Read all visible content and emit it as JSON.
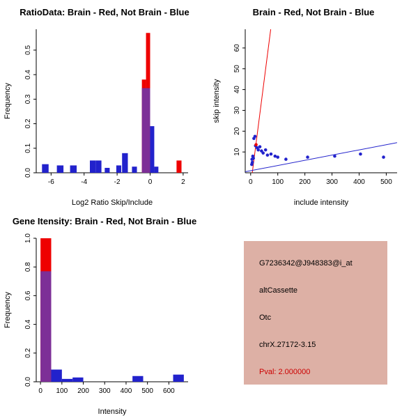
{
  "palette": {
    "red": "#ee0000",
    "blue": "#2222cc",
    "purple": "#7d2f97",
    "black": "#000000"
  },
  "chart_data": [
    {
      "id": "ratio_hist",
      "type": "bar",
      "title": "RatioData: Brain - Red, Not Brain - Blue",
      "xlabel": "Log2 Ratio Skip/Include",
      "ylabel": "Frequency",
      "xlim": [
        -6.9,
        2.3
      ],
      "ylim": [
        0,
        0.585
      ],
      "legend": "overlaid histograms: Brain in red, Not Brain in blue, overlap purple",
      "xticks": [
        {
          "v": -6,
          "label": "-6"
        },
        {
          "v": -4,
          "label": "-4"
        },
        {
          "v": -2,
          "label": "-2"
        },
        {
          "v": 0,
          "label": "0"
        },
        {
          "v": 2,
          "label": "2"
        }
      ],
      "yticks": [
        {
          "v": 0,
          "label": "0.0"
        },
        {
          "v": 0.1,
          "label": "0.1"
        },
        {
          "v": 0.2,
          "label": "0.2"
        },
        {
          "v": 0.3,
          "label": "0.3"
        },
        {
          "v": 0.4,
          "label": "0.4"
        },
        {
          "v": 0.5,
          "label": "0.5"
        }
      ],
      "bars": [
        {
          "x0": -6.55,
          "x1": -6.15,
          "h": 0.035,
          "color": "blue"
        },
        {
          "x0": -5.65,
          "x1": -5.25,
          "h": 0.03,
          "color": "blue"
        },
        {
          "x0": -4.85,
          "x1": -4.45,
          "h": 0.03,
          "color": "blue"
        },
        {
          "x0": -3.65,
          "x1": -3.3,
          "h": 0.05,
          "color": "blue"
        },
        {
          "x0": -3.3,
          "x1": -2.95,
          "h": 0.05,
          "color": "blue"
        },
        {
          "x0": -2.75,
          "x1": -2.45,
          "h": 0.02,
          "color": "blue"
        },
        {
          "x0": -2.05,
          "x1": -1.75,
          "h": 0.03,
          "color": "blue"
        },
        {
          "x0": -1.7,
          "x1": -1.35,
          "h": 0.08,
          "color": "blue"
        },
        {
          "x0": -1.1,
          "x1": -0.8,
          "h": 0.025,
          "color": "blue"
        },
        {
          "x0": -0.5,
          "x1": -0.25,
          "h": 0.38,
          "color": "red"
        },
        {
          "x0": -0.25,
          "x1": 0.0,
          "h": 0.57,
          "color": "red"
        },
        {
          "x0": -0.5,
          "x1": 0.0,
          "h": 0.345,
          "color": "purple"
        },
        {
          "x0": 0.0,
          "x1": 0.25,
          "h": 0.19,
          "color": "blue"
        },
        {
          "x0": 0.25,
          "x1": 0.5,
          "h": 0.025,
          "color": "blue"
        },
        {
          "x0": 1.6,
          "x1": 1.9,
          "h": 0.05,
          "color": "red"
        }
      ]
    },
    {
      "id": "scatter",
      "type": "scatter",
      "title": "Brain - Red, Not Brain - Blue",
      "xlabel": "include intensity",
      "ylabel": "skip intensity",
      "xlim": [
        -20,
        540
      ],
      "ylim": [
        0,
        69
      ],
      "xticks": [
        {
          "v": 0,
          "label": "0"
        },
        {
          "v": 100,
          "label": "100"
        },
        {
          "v": 200,
          "label": "200"
        },
        {
          "v": 300,
          "label": "300"
        },
        {
          "v": 400,
          "label": "400"
        },
        {
          "v": 500,
          "label": "500"
        }
      ],
      "yticks": [
        {
          "v": 10,
          "label": "10"
        },
        {
          "v": 20,
          "label": "20"
        },
        {
          "v": 30,
          "label": "30"
        },
        {
          "v": 40,
          "label": "40"
        },
        {
          "v": 50,
          "label": "50"
        },
        {
          "v": 60,
          "label": "60"
        }
      ],
      "lines": [
        {
          "x0": 6,
          "y0": 0,
          "x1": 74,
          "y1": 69,
          "color": "red"
        },
        {
          "x0": -20,
          "y0": 0.5,
          "x1": 540,
          "y1": 14.5,
          "color": "blue"
        }
      ],
      "points": [
        {
          "x": 4,
          "y": 4,
          "c": "blue"
        },
        {
          "x": 5,
          "y": 6.5,
          "c": "blue"
        },
        {
          "x": 6,
          "y": 5,
          "c": "blue"
        },
        {
          "x": 8,
          "y": 8,
          "c": "blue"
        },
        {
          "x": 10,
          "y": 7,
          "c": "blue"
        },
        {
          "x": 12,
          "y": 16.5,
          "c": "blue"
        },
        {
          "x": 16,
          "y": 17.5,
          "c": "blue"
        },
        {
          "x": 18,
          "y": 13,
          "c": "blue"
        },
        {
          "x": 20,
          "y": 13.5,
          "c": "red"
        },
        {
          "x": 24,
          "y": 12,
          "c": "blue"
        },
        {
          "x": 28,
          "y": 11,
          "c": "blue"
        },
        {
          "x": 34,
          "y": 12.5,
          "c": "blue"
        },
        {
          "x": 40,
          "y": 10.5,
          "c": "blue"
        },
        {
          "x": 46,
          "y": 9.5,
          "c": "blue"
        },
        {
          "x": 55,
          "y": 11,
          "c": "blue"
        },
        {
          "x": 62,
          "y": 8.5,
          "c": "blue"
        },
        {
          "x": 75,
          "y": 9,
          "c": "blue"
        },
        {
          "x": 90,
          "y": 8,
          "c": "blue"
        },
        {
          "x": 100,
          "y": 7.5,
          "c": "blue"
        },
        {
          "x": 130,
          "y": 6.5,
          "c": "blue"
        },
        {
          "x": 210,
          "y": 7.5,
          "c": "blue"
        },
        {
          "x": 310,
          "y": 8,
          "c": "blue"
        },
        {
          "x": 405,
          "y": 9,
          "c": "blue"
        },
        {
          "x": 490,
          "y": 7.5,
          "c": "blue"
        }
      ]
    },
    {
      "id": "gene_hist",
      "type": "bar",
      "title": "Gene Itensity: Brain - Red, Not Brain - Blue",
      "xlabel": "Intensity",
      "ylabel": "Frequency",
      "xlim": [
        -20,
        690
      ],
      "ylim": [
        0,
        1.0
      ],
      "xticks": [
        {
          "v": 0,
          "label": "0"
        },
        {
          "v": 100,
          "label": "100"
        },
        {
          "v": 200,
          "label": "200"
        },
        {
          "v": 300,
          "label": "300"
        },
        {
          "v": 400,
          "label": "400"
        },
        {
          "v": 500,
          "label": "500"
        },
        {
          "v": 600,
          "label": "600"
        }
      ],
      "yticks": [
        {
          "v": 0,
          "label": "0.0"
        },
        {
          "v": 0.2,
          "label": "0.2"
        },
        {
          "v": 0.4,
          "label": "0.4"
        },
        {
          "v": 0.6,
          "label": "0.6"
        },
        {
          "v": 0.8,
          "label": "0.8"
        },
        {
          "v": 1.0,
          "label": "1.0"
        }
      ],
      "bars": [
        {
          "x0": 0,
          "x1": 50,
          "h": 1.0,
          "color": "red"
        },
        {
          "x0": 0,
          "x1": 50,
          "h": 0.77,
          "color": "purple"
        },
        {
          "x0": 50,
          "x1": 100,
          "h": 0.085,
          "color": "blue"
        },
        {
          "x0": 100,
          "x1": 150,
          "h": 0.02,
          "color": "blue"
        },
        {
          "x0": 150,
          "x1": 200,
          "h": 0.03,
          "color": "blue"
        },
        {
          "x0": 430,
          "x1": 480,
          "h": 0.04,
          "color": "blue"
        },
        {
          "x0": 620,
          "x1": 670,
          "h": 0.05,
          "color": "blue"
        }
      ]
    }
  ],
  "info_panel": {
    "bg": "#ddb0a5",
    "lines": [
      {
        "text": "G7236342@J948383@i_at",
        "color": "#000000"
      },
      {
        "text": "altCassette",
        "color": "#000000"
      },
      {
        "text": "Otc",
        "color": "#000000"
      },
      {
        "text": "chrX.27172-3.15",
        "color": "#000000"
      },
      {
        "text": "Pval: 2.000000",
        "color": "#cc0000"
      }
    ]
  }
}
